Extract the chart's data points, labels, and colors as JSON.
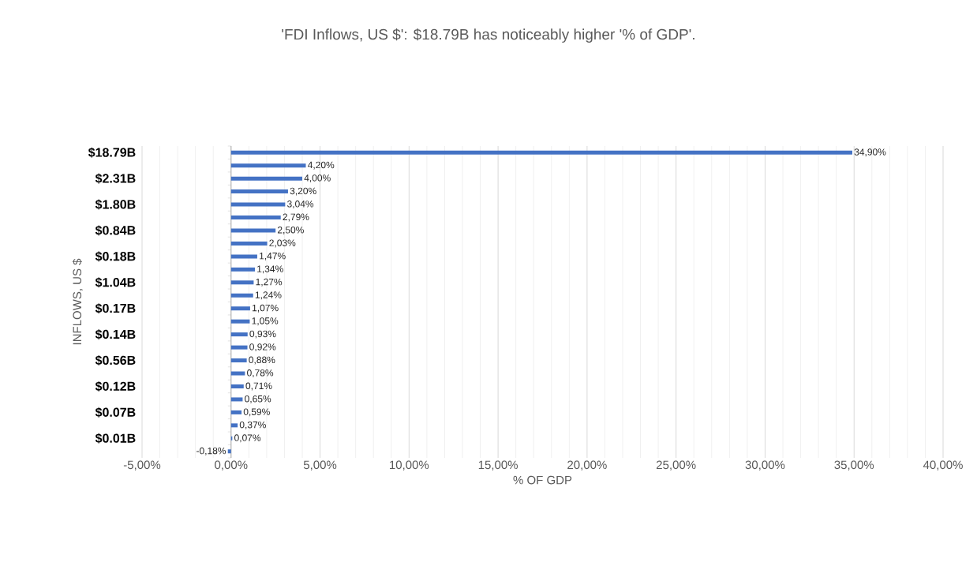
{
  "chart_data": {
    "type": "bar",
    "orientation": "horizontal",
    "title": "'FDI Inflows, US $': $18.79B has noticeably higher '% of GDP'.",
    "xlabel": "% OF GDP",
    "ylabel": "INFLOWS, US $",
    "categories": [
      "$18.79B",
      null,
      "$2.31B",
      null,
      "$1.80B",
      null,
      "$0.84B",
      null,
      "$0.18B",
      null,
      "$1.04B",
      null,
      "$0.17B",
      null,
      "$0.14B",
      null,
      "$0.56B",
      null,
      "$0.12B",
      null,
      "$0.07B",
      null,
      "$0.01B",
      null
    ],
    "values": [
      34.9,
      4.2,
      4.0,
      3.2,
      3.04,
      2.79,
      2.5,
      2.03,
      1.47,
      1.34,
      1.27,
      1.24,
      1.07,
      1.05,
      0.93,
      0.92,
      0.88,
      0.78,
      0.71,
      0.65,
      0.59,
      0.37,
      0.07,
      -0.18
    ],
    "value_labels": [
      "34,90%",
      "4,20%",
      "4,00%",
      "3,20%",
      "3,04%",
      "2,79%",
      "2,50%",
      "2,03%",
      "1,47%",
      "1,34%",
      "1,27%",
      "1,24%",
      "1,07%",
      "1,05%",
      "0,93%",
      "0,92%",
      "0,88%",
      "0,78%",
      "0,71%",
      "0,65%",
      "0,59%",
      "0,37%",
      "0,07%",
      "-0,18%"
    ],
    "color": "#4472c4",
    "xlim": [
      -5,
      40
    ],
    "xticks": [
      {
        "value": -5,
        "label": "-5,00%"
      },
      {
        "value": 0,
        "label": "0,00%"
      },
      {
        "value": 5,
        "label": "5,00%"
      },
      {
        "value": 10,
        "label": "10,00%"
      },
      {
        "value": 15,
        "label": "15,00%"
      },
      {
        "value": 20,
        "label": "20,00%"
      },
      {
        "value": 25,
        "label": "25,00%"
      },
      {
        "value": 30,
        "label": "30,00%"
      },
      {
        "value": 35,
        "label": "35,00%"
      },
      {
        "value": 40,
        "label": "40,00%"
      }
    ],
    "grid": "x"
  }
}
